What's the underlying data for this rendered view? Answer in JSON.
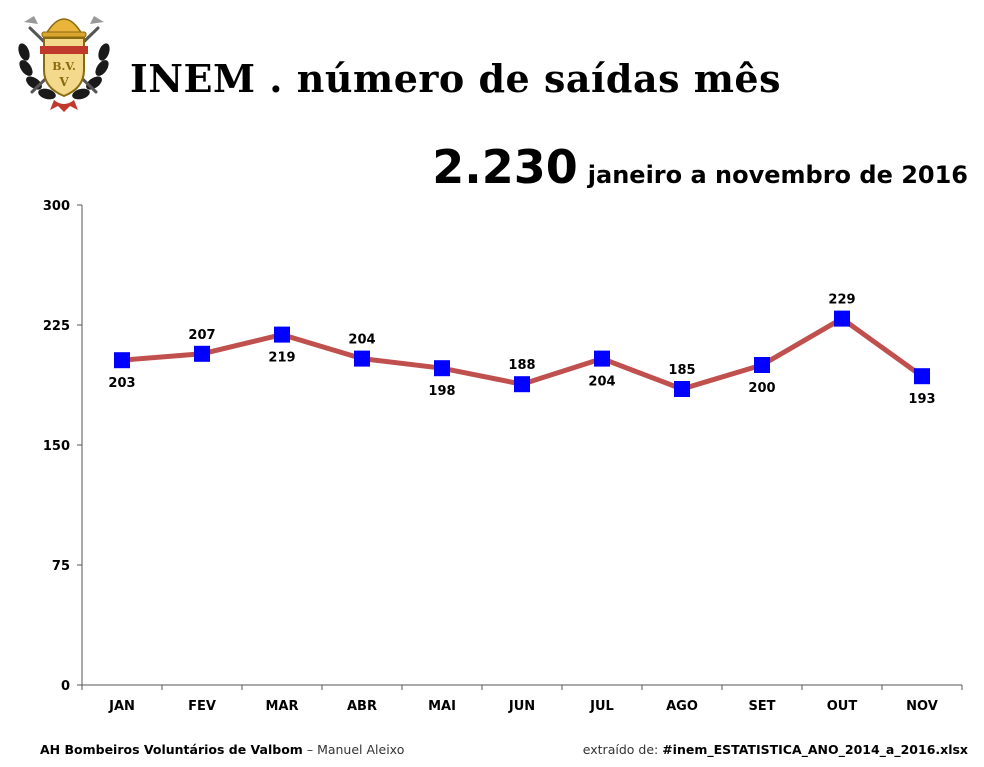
{
  "header": {
    "title": "INEM . número de saídas mês",
    "total": "2.230",
    "period": "janeiro a novembro de 2016"
  },
  "logo": {
    "icon": "fire-brigade-crest-icon",
    "letters": "B.V.V."
  },
  "chart_data": {
    "type": "line",
    "categories": [
      "JAN",
      "FEV",
      "MAR",
      "ABR",
      "MAI",
      "JUN",
      "JUL",
      "AGO",
      "SET",
      "OUT",
      "NOV"
    ],
    "series": [
      {
        "values": [
          203,
          207,
          219,
          204,
          198,
          188,
          204,
          185,
          200,
          229,
          193
        ]
      }
    ],
    "data_label_positions": [
      "below",
      "above",
      "below",
      "above",
      "below",
      "above",
      "below",
      "above",
      "below",
      "above",
      "below"
    ],
    "ylim": [
      0,
      300
    ],
    "yticks": [
      0,
      75,
      150,
      225,
      300
    ],
    "grid": false,
    "legend": "none",
    "colors": {
      "line": "#C0504D",
      "marker": "#0000FF"
    }
  },
  "footer": {
    "org": "AH Bombeiros Voluntários de Valbom",
    "separator": "–",
    "author": "Manuel Aleixo",
    "source_label": "extraído de:",
    "source_file": "#inem_ESTATISTICA_ANO_2014_a_2016.xlsx"
  }
}
